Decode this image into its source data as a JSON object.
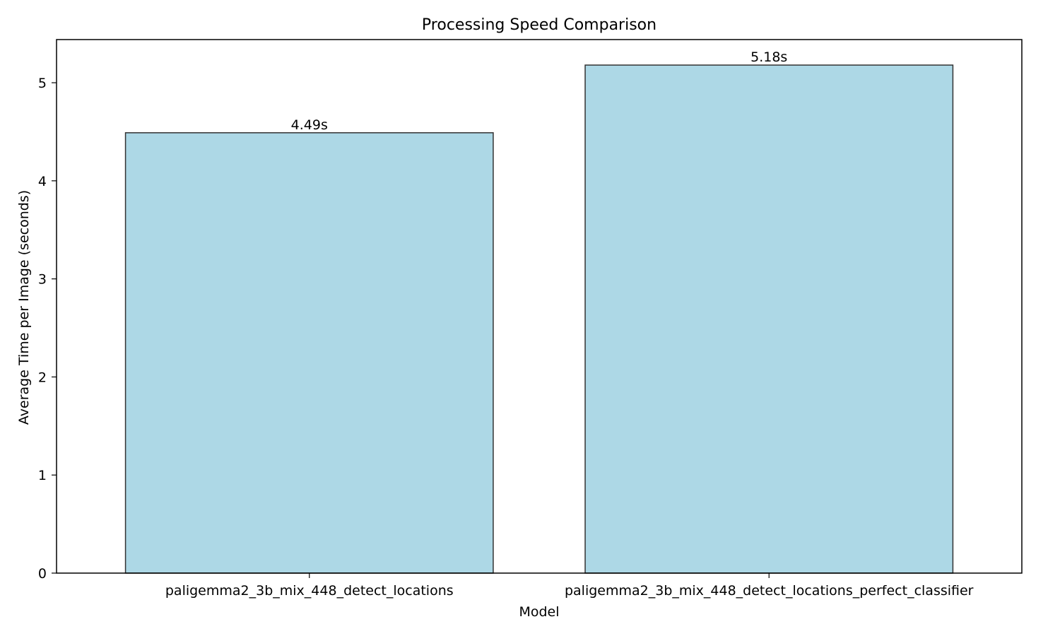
{
  "chart_data": {
    "type": "bar",
    "title": "Processing Speed Comparison",
    "xlabel": "Model",
    "ylabel": "Average Time per Image (seconds)",
    "categories": [
      "paligemma2_3b_mix_448_detect_locations",
      "paligemma2_3b_mix_448_detect_locations_perfect_classifier"
    ],
    "values": [
      4.49,
      5.18
    ],
    "data_labels": [
      "4.49s",
      "5.18s"
    ],
    "ylim": [
      0,
      5.44
    ],
    "yticks": [
      0,
      1,
      2,
      3,
      4,
      5
    ],
    "ytick_labels": [
      "0",
      "1",
      "2",
      "3",
      "4",
      "5"
    ],
    "grid": false,
    "legend": "none",
    "colors": {
      "bar_fill": "#add8e6",
      "bar_edge": "#333333",
      "axes": "#000000"
    }
  }
}
